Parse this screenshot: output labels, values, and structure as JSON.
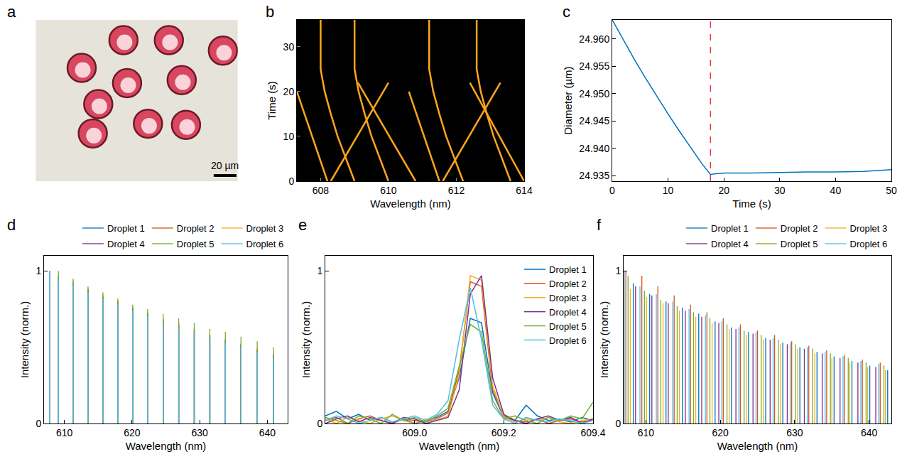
{
  "chart_data": [
    {
      "panel": "a",
      "type": "scatter",
      "color": "#d8475f",
      "tick_labels": false,
      "xlim": [
        0,
        178
      ],
      "ylim": [
        0,
        142
      ],
      "diameter": 25,
      "x": [
        77.3,
        117.3,
        164.9,
        40.5,
        80.5,
        128.6,
        55.1,
        98.9,
        132.4,
        50.3
      ],
      "values": [
        124.2,
        124.2,
        115,
        99.8,
        86.3,
        89,
        67.9,
        50.6,
        49.6,
        42
      ],
      "scale_bar": {
        "x": 156.8,
        "y": 5,
        "value": 20,
        "label": "20 µm"
      }
    },
    {
      "panel": "b",
      "type": "line",
      "color": "#ffa51f",
      "xlabel": "Wavelength (nm)",
      "ylabel": "Time (s)",
      "xlim": [
        607.3,
        614
      ],
      "ylim": [
        0,
        36
      ],
      "xticks": [
        608,
        610,
        612,
        614
      ],
      "yticks": [
        0,
        10,
        20,
        30
      ],
      "series": [
        {
          "x": [
            609.0,
            608.75,
            608.5,
            608.3,
            608.12,
            608.0,
            608.0
          ],
          "values": [
            0,
            5,
            10,
            15,
            20,
            25,
            36
          ]
        },
        {
          "x": [
            610.0,
            609.75,
            609.5,
            609.3,
            609.12,
            609.0,
            609.0
          ],
          "values": [
            0,
            5,
            10,
            15,
            20,
            25,
            36
          ]
        },
        {
          "x": [
            612.2,
            611.95,
            611.7,
            611.5,
            611.32,
            611.2,
            611.2
          ],
          "values": [
            0,
            5,
            10,
            15,
            20,
            25,
            36
          ]
        },
        {
          "x": [
            613.6,
            613.35,
            613.1,
            612.9,
            612.72,
            612.6,
            612.6
          ],
          "values": [
            0,
            5,
            10,
            15,
            20,
            25,
            36
          ]
        },
        {
          "x": [
            608.2,
            607.3
          ],
          "values": [
            0,
            20
          ]
        },
        {
          "x": [
            608.3,
            610.0
          ],
          "values": [
            0,
            22
          ]
        },
        {
          "x": [
            610.8,
            609.1
          ],
          "values": [
            0,
            22
          ]
        },
        {
          "x": [
            611.5,
            610.6
          ],
          "values": [
            0,
            20
          ]
        },
        {
          "x": [
            611.6,
            613.3
          ],
          "values": [
            0,
            22
          ]
        },
        {
          "x": [
            614.0,
            612.4
          ],
          "values": [
            0,
            22
          ]
        }
      ]
    },
    {
      "panel": "c",
      "type": "line",
      "color": "#0072bd",
      "xlabel": "Time (s)",
      "ylabel": "Diameter (µm)",
      "xlim": [
        0,
        50
      ],
      "ylim": [
        24.934,
        24.9635
      ],
      "xticks": [
        0,
        10,
        20,
        30,
        40,
        50
      ],
      "yticks": [
        24.935,
        {
          "value": 24.94,
          "label": "24.940"
        },
        24.945,
        {
          "value": 24.95,
          "label": "24.950"
        },
        24.955,
        {
          "value": 24.96,
          "label": "24.960"
        }
      ],
      "x": [
        0,
        2,
        4,
        6,
        8,
        10,
        12,
        14,
        16,
        17.6,
        18,
        20,
        25,
        30,
        35,
        40,
        45,
        50
      ],
      "series": [
        {
          "values": [
            24.9635,
            24.9598,
            24.9562,
            24.9528,
            24.9495,
            24.9463,
            24.9432,
            24.9402,
            24.9373,
            24.9352,
            24.9353,
            24.9355,
            24.9355,
            24.9356,
            24.9357,
            24.9357,
            24.9358,
            24.9361
          ]
        }
      ],
      "vlines": [
        {
          "x": 17.6,
          "color": "#e8343a",
          "line_style": "dash"
        }
      ]
    },
    {
      "panel": "d",
      "type": "stem",
      "legend": "above",
      "xlabel": "Wavelength (nm)",
      "ylabel": "Intensity (norm.)",
      "xlim": [
        607,
        643
      ],
      "ylim": [
        0,
        1.1
      ],
      "xticks": [
        610,
        620,
        630,
        640
      ],
      "yticks": [
        0,
        1
      ],
      "x": [
        607.8,
        609.13,
        611.3,
        613.5,
        615.7,
        617.9,
        620.1,
        622.3,
        624.6,
        626.9,
        629.2,
        631.5,
        633.8,
        636.1,
        638.5,
        640.9
      ],
      "series": [
        {
          "name": "Droplet 1",
          "color": "#0072bd",
          "values": [
            1.0,
            0.95,
            0.92,
            0.87,
            0.83,
            0.79,
            0.75,
            0.72,
            0.67,
            0.64,
            0.61,
            0.57,
            0.54,
            0.51,
            0.48,
            0.44
          ]
        },
        {
          "name": "Droplet 2",
          "color": "#d95319",
          "values": [
            1.0,
            0.96,
            0.93,
            0.88,
            0.84,
            0.8,
            0.76,
            0.73,
            0.69,
            0.65,
            0.62,
            0.58,
            0.55,
            0.52,
            0.49,
            0.45
          ]
        },
        {
          "name": "Droplet 3",
          "color": "#edb120",
          "values": [
            1.0,
            0.97,
            0.94,
            0.89,
            0.85,
            0.81,
            0.77,
            0.73,
            0.69,
            0.66,
            0.63,
            0.59,
            0.56,
            0.53,
            0.5,
            0.46
          ]
        },
        {
          "name": "Droplet 4",
          "color": "#7e2f8e",
          "values": [
            1.0,
            0.96,
            0.92,
            0.88,
            0.83,
            0.8,
            0.76,
            0.72,
            0.68,
            0.65,
            0.61,
            0.58,
            0.55,
            0.52,
            0.48,
            0.45
          ]
        },
        {
          "name": "Droplet 5",
          "color": "#77ac30",
          "values": [
            0.99,
            1.0,
            0.95,
            0.9,
            0.86,
            0.82,
            0.78,
            0.75,
            0.72,
            0.69,
            0.66,
            0.62,
            0.6,
            0.57,
            0.54,
            0.5
          ]
        },
        {
          "name": "Droplet 6",
          "color": "#4dbeee",
          "values": [
            1.0,
            0.95,
            0.91,
            0.86,
            0.82,
            0.78,
            0.74,
            0.7,
            0.66,
            0.63,
            0.6,
            0.56,
            0.53,
            0.5,
            0.47,
            0.43
          ]
        }
      ]
    },
    {
      "panel": "e",
      "type": "line",
      "legend": "top right",
      "xlabel": "Wavelength (nm)",
      "ylabel": "Intensity (norm.)",
      "xlim": [
        608.8,
        609.4
      ],
      "ylim": [
        0,
        1.1
      ],
      "xticks": [
        {
          "value": 609,
          "label": "609.0"
        },
        609.2,
        609.4
      ],
      "yticks": [
        0,
        1
      ],
      "x": [
        608.8,
        608.825,
        608.85,
        608.875,
        608.9,
        608.925,
        608.95,
        608.975,
        609.0,
        609.025,
        609.05,
        609.075,
        609.1,
        609.125,
        609.15,
        609.175,
        609.2,
        609.225,
        609.25,
        609.275,
        609.3,
        609.325,
        609.35,
        609.375,
        609.4
      ],
      "series": [
        {
          "name": "Droplet 1",
          "color": "#0072bd",
          "values": [
            0.05,
            0.08,
            0.03,
            0.06,
            0.02,
            0.04,
            0.01,
            0.03,
            0.0,
            0.02,
            0.04,
            0.08,
            0.3,
            0.69,
            0.66,
            0.2,
            0.04,
            0.02,
            0.12,
            0.05,
            0.02,
            0.03,
            0.01,
            0.04,
            0.02
          ]
        },
        {
          "name": "Droplet 2",
          "color": "#d95319",
          "values": [
            0.02,
            0.04,
            0.0,
            0.03,
            0.05,
            0.02,
            0.0,
            0.03,
            0.02,
            0.01,
            0.03,
            0.07,
            0.35,
            0.93,
            0.9,
            0.22,
            0.05,
            0.02,
            0.01,
            0.03,
            0.0,
            0.02,
            0.03,
            0.01,
            0.02
          ]
        },
        {
          "name": "Droplet 3",
          "color": "#edb120",
          "values": [
            0.03,
            0.0,
            0.04,
            0.02,
            0.0,
            0.03,
            0.05,
            0.02,
            0.0,
            0.03,
            0.02,
            0.05,
            0.32,
            0.97,
            0.94,
            0.25,
            0.04,
            0.01,
            0.03,
            0.02,
            0.04,
            0.01,
            0.0,
            0.02,
            0.03
          ]
        },
        {
          "name": "Droplet 4",
          "color": "#7e2f8e",
          "values": [
            0.0,
            0.03,
            0.05,
            0.01,
            0.04,
            0.02,
            0.0,
            0.04,
            0.03,
            0.0,
            0.02,
            0.04,
            0.22,
            0.85,
            0.97,
            0.3,
            0.06,
            0.02,
            0.0,
            0.03,
            0.05,
            0.02,
            0.04,
            0.0,
            0.03
          ]
        },
        {
          "name": "Droplet 5",
          "color": "#77ac30",
          "values": [
            0.04,
            0.02,
            0.0,
            0.05,
            0.03,
            0.0,
            0.06,
            0.02,
            0.04,
            0.01,
            0.05,
            0.1,
            0.38,
            0.65,
            0.6,
            0.15,
            0.03,
            0.05,
            0.02,
            0.0,
            0.04,
            0.02,
            0.05,
            0.03,
            0.14
          ]
        },
        {
          "name": "Droplet 6",
          "color": "#4dbeee",
          "values": [
            0.02,
            0.05,
            0.03,
            0.0,
            0.02,
            0.04,
            0.01,
            0.03,
            0.05,
            0.02,
            0.06,
            0.15,
            0.55,
            0.89,
            0.55,
            0.12,
            0.03,
            0.0,
            0.04,
            0.02,
            0.01,
            0.03,
            0.02,
            0.0,
            0.02
          ]
        }
      ]
    },
    {
      "panel": "f",
      "type": "stem",
      "legend": "above",
      "xlabel": "Wavelength (nm)",
      "ylabel": "Intensity (norm.)",
      "xlim": [
        607,
        643
      ],
      "ylim": [
        0,
        1.1
      ],
      "xticks": [
        610,
        620,
        630,
        640
      ],
      "yticks": [
        0,
        1
      ],
      "series": [
        {
          "name": "Droplet 1",
          "color": "#0072bd",
          "x": [
            608.3,
            610.5,
            612.7,
            614.9,
            617.1,
            619.3,
            621.5,
            623.8,
            626.1,
            628.4,
            630.7,
            633.0,
            635.3,
            637.7,
            640.1,
            642.5
          ],
          "values": [
            0.92,
            0.85,
            0.8,
            0.76,
            0.72,
            0.67,
            0.63,
            0.6,
            0.56,
            0.53,
            0.5,
            0.47,
            0.44,
            0.41,
            0.38,
            0.35
          ]
        },
        {
          "name": "Droplet 2",
          "color": "#d95319",
          "x": [
            607.3,
            609.45,
            611.6,
            613.8,
            616.0,
            618.2,
            620.4,
            622.7,
            625.0,
            627.3,
            629.6,
            631.9,
            634.3,
            636.7,
            639.1,
            641.5
          ],
          "values": [
            1.0,
            0.97,
            0.9,
            0.84,
            0.78,
            0.73,
            0.69,
            0.65,
            0.61,
            0.58,
            0.54,
            0.51,
            0.48,
            0.45,
            0.42,
            0.4
          ]
        },
        {
          "name": "Droplet 3",
          "color": "#edb120",
          "x": [
            607.9,
            610.1,
            612.3,
            614.5,
            616.7,
            618.9,
            621.2,
            623.5,
            625.8,
            628.1,
            630.4,
            632.7,
            635.0,
            637.4,
            639.8,
            642.2
          ],
          "values": [
            0.88,
            0.83,
            0.79,
            0.74,
            0.7,
            0.66,
            0.62,
            0.58,
            0.55,
            0.52,
            0.49,
            0.46,
            0.43,
            0.4,
            0.37,
            0.35
          ]
        },
        {
          "name": "Droplet 4",
          "color": "#7e2f8e",
          "x": [
            608.6,
            610.8,
            613.0,
            615.3,
            617.5,
            619.8,
            622.1,
            624.4,
            626.7,
            629.0,
            631.3,
            633.7,
            636.1,
            638.5,
            640.9
          ],
          "values": [
            0.9,
            0.84,
            0.79,
            0.74,
            0.7,
            0.66,
            0.62,
            0.59,
            0.55,
            0.52,
            0.49,
            0.46,
            0.43,
            0.4,
            0.37
          ]
        },
        {
          "name": "Droplet 5",
          "color": "#77ac30",
          "x": [
            607.6,
            609.8,
            612.0,
            614.2,
            616.4,
            618.6,
            620.9,
            623.2,
            625.5,
            627.8,
            630.1,
            632.4,
            634.8,
            637.2,
            639.6,
            642.0
          ],
          "values": [
            0.97,
            0.87,
            0.81,
            0.77,
            0.73,
            0.69,
            0.65,
            0.61,
            0.58,
            0.55,
            0.52,
            0.49,
            0.46,
            0.43,
            0.4,
            0.38
          ]
        },
        {
          "name": "Droplet 6",
          "color": "#4dbeee",
          "x": [
            607.1,
            609.2,
            611.4,
            613.6,
            615.8,
            618.0,
            620.2,
            622.5,
            624.8,
            627.1,
            629.4,
            631.7,
            634.1,
            636.5,
            638.9,
            641.3
          ],
          "values": [
            1.0,
            0.9,
            0.85,
            0.8,
            0.75,
            0.71,
            0.67,
            0.63,
            0.6,
            0.56,
            0.53,
            0.5,
            0.47,
            0.44,
            0.41,
            0.39
          ]
        }
      ]
    }
  ]
}
